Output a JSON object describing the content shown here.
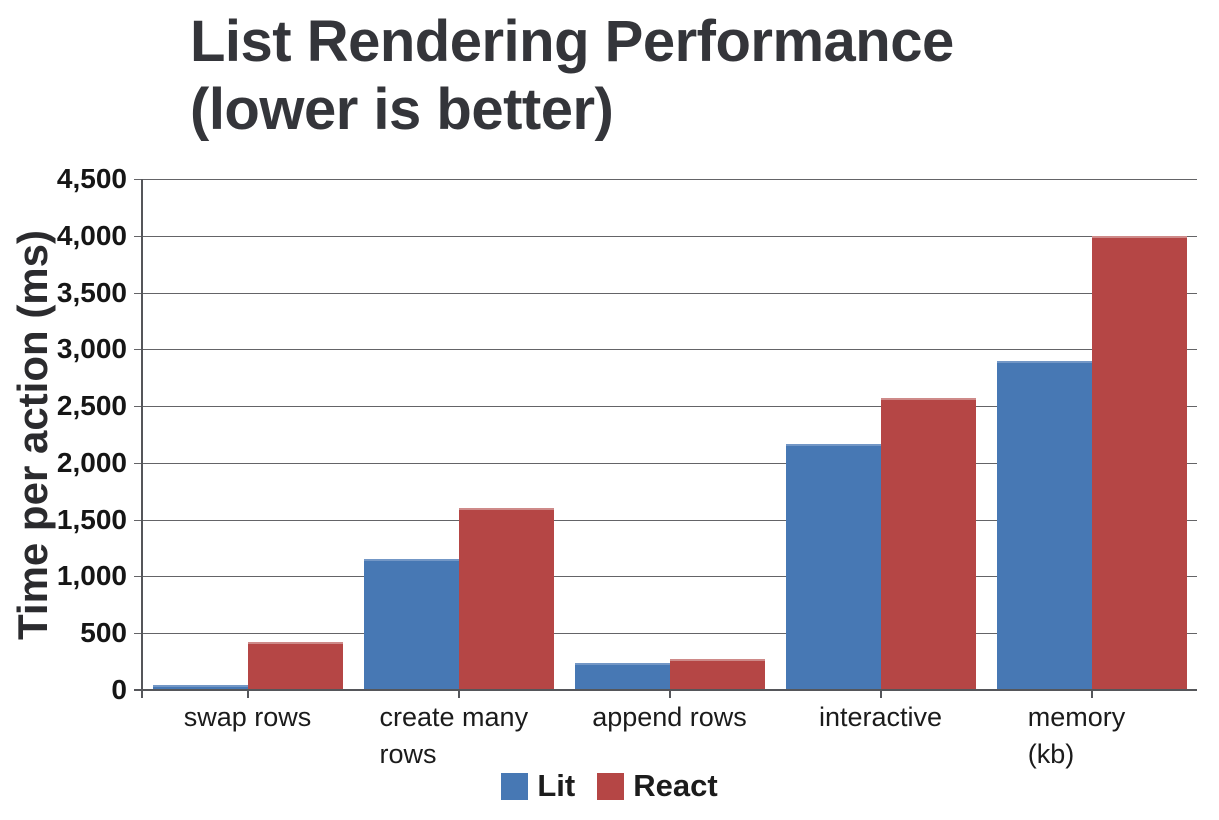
{
  "title": {
    "text": "List Rendering Performance\n(lower is better)"
  },
  "chart_data": {
    "type": "bar",
    "title": "List Rendering Performance (lower is better)",
    "subtitle": "lower is better",
    "xlabel": "",
    "ylabel": "Time per action (ms)",
    "ylim": [
      0,
      4500
    ],
    "ytick_step": 500,
    "ytick_labels": [
      "0",
      "500",
      "1,000",
      "1,500",
      "2,000",
      "2,500",
      "3,000",
      "3,500",
      "4,000",
      "4,500"
    ],
    "grid": true,
    "legend_position": "bottom",
    "categories": [
      "swap rows",
      "create many rows",
      "append rows",
      "interactive",
      "memory (kb)"
    ],
    "series": [
      {
        "name": "Lit",
        "color": "#4778B4",
        "highlight": "#7397C6",
        "values": [
          45,
          1150,
          240,
          2170,
          2900
        ]
      },
      {
        "name": "React",
        "color": "#B54645",
        "highlight": "#CE8A89",
        "values": [
          420,
          1600,
          270,
          2575,
          4000
        ]
      }
    ]
  },
  "colors": {
    "title_text": "#34353a",
    "axis_line": "#55565a",
    "gridline": "#646467",
    "tick_text": "#161616",
    "background": "#ffffff"
  }
}
